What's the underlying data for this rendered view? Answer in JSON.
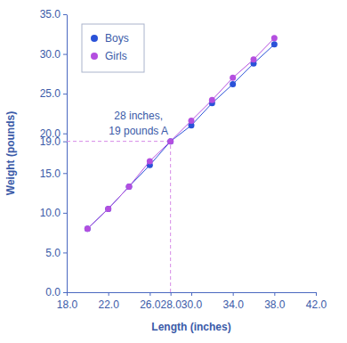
{
  "chart_data": {
    "type": "line",
    "x_label": "Length (inches)",
    "y_label": "Weight (pounds)",
    "x": [
      20,
      22,
      24,
      26,
      28,
      30,
      32,
      34,
      36,
      38
    ],
    "series": [
      {
        "name": "Boys",
        "color": "#2a52d8",
        "marker": "circle",
        "line_style": "solid",
        "values": [
          8,
          10.5,
          13.3,
          16,
          19,
          21,
          23.8,
          26.2,
          28.8,
          31.2
        ]
      },
      {
        "name": "Girls",
        "color": "#b44fe0",
        "marker": "circle",
        "line_style": "solid",
        "values": [
          8,
          10.5,
          13.3,
          16.5,
          19,
          21.6,
          24.2,
          27,
          29.3,
          32
        ]
      }
    ],
    "xlim": [
      18,
      42
    ],
    "xticks": [
      {
        "value": 18,
        "label": "18.0"
      },
      {
        "value": 22,
        "label": "22.0"
      },
      {
        "value": 26,
        "label": "26.0"
      },
      {
        "value": 28,
        "label": "28.0"
      },
      {
        "value": 30,
        "label": "30.0"
      },
      {
        "value": 34,
        "label": "34.0"
      },
      {
        "value": 38,
        "label": "38.0"
      },
      {
        "value": 42,
        "label": "42.0"
      }
    ],
    "ylim": [
      0,
      35
    ],
    "yticks": [
      {
        "value": 0,
        "label": "0.0"
      },
      {
        "value": 5,
        "label": "5.0"
      },
      {
        "value": 10,
        "label": "10.0"
      },
      {
        "value": 15,
        "label": "15.0"
      },
      {
        "value": 19,
        "label": "19.0"
      },
      {
        "value": 20,
        "label": "20.0"
      },
      {
        "value": 25,
        "label": "25.0"
      },
      {
        "value": 30,
        "label": "30.0"
      },
      {
        "value": 35,
        "label": "35.0"
      }
    ],
    "annotations": [
      {
        "text": [
          "28 inches,",
          "19 pounds A"
        ],
        "x": 28,
        "y": 19,
        "color": "#d68ae6",
        "line_style": "dashed"
      }
    ],
    "legend": "top-left",
    "grid": false
  }
}
